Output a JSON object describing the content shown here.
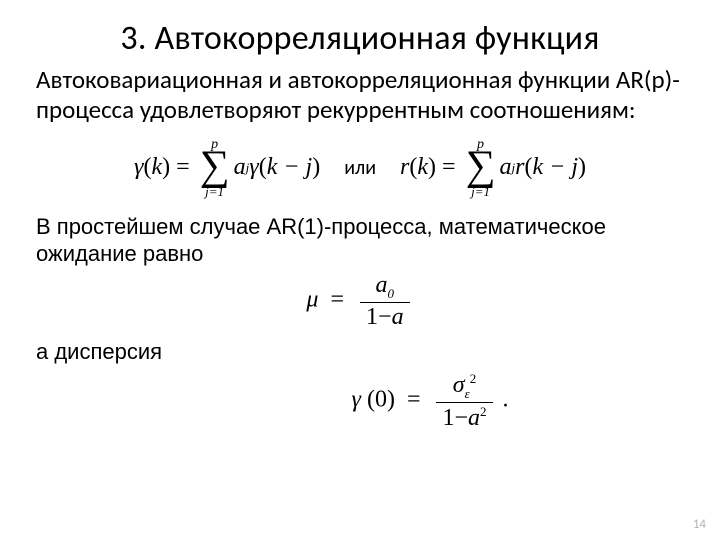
{
  "title": "3. Автокорреляционная функция",
  "intro": "Автоковариационная и автокорреляционная функции AR(p)-процесса удовлетворяют рекуррентным соотношениям:",
  "eq1_lhs_fn": "γ",
  "eq1_lhs_arg": "k",
  "eq1_sum_upper": "p",
  "eq1_sum_lower": "j=1",
  "eq1_coef": "a",
  "eq1_coef_sub": "j",
  "eq1_rhs_fn": "γ",
  "eq1_rhs_arg": "k − j",
  "or_word": "или",
  "eq2_lhs_fn": "r",
  "eq2_lhs_arg": "k",
  "eq2_sum_upper": "p",
  "eq2_sum_lower": "j=1",
  "eq2_coef": "a",
  "eq2_coef_sub": "j",
  "eq2_rhs_fn": "r",
  "eq2_rhs_arg": "k − j",
  "para2": "В простейшем случае AR(1)-процесса, математическое ожидание равно",
  "mu_sym": "μ",
  "mu_num_a": "a",
  "mu_num_sub": "0",
  "mu_den_lead": "1−",
  "mu_den_a": "a",
  "para3": "а дисперсия",
  "gamma0_fn": "γ",
  "gamma0_arg": "0",
  "var_num_sigma": "σ",
  "var_num_sub": "ε",
  "var_num_sup": "2",
  "var_den_lead": "1−",
  "var_den_a": "a",
  "var_den_sup": "2",
  "period": ".",
  "pagenum": "14",
  "colors": {
    "text": "#000000",
    "bg": "#ffffff",
    "pagenum": "#b4b4b4"
  },
  "fonts": {
    "body": "Calibri",
    "math": "Times New Roman",
    "title_size_pt": 34,
    "para_size_pt": 25,
    "small_para_pt": 22,
    "math_pt": 24
  }
}
